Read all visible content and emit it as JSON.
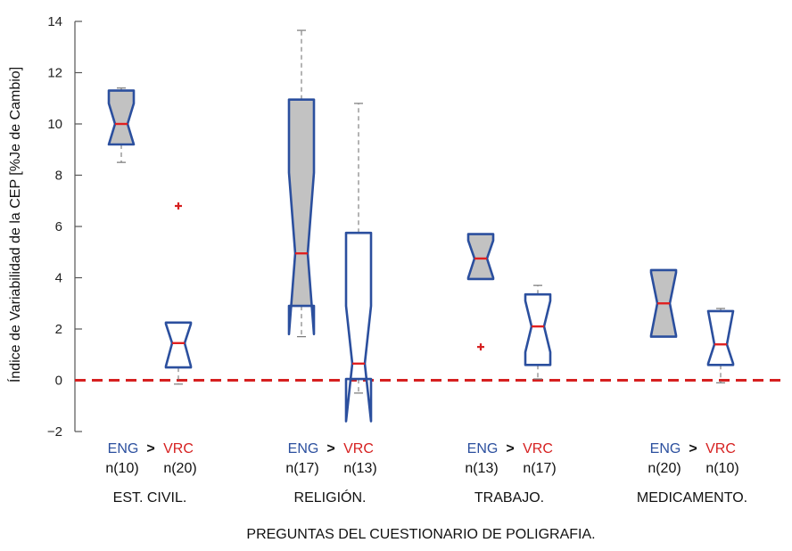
{
  "chart_data": {
    "type": "boxplot",
    "ylabel": "Índice de Variabilidad de la CEP [%Je de Cambio]",
    "xlabel": "PREGUNTAS DEL CUESTIONARIO DE POLIGRAFIA.",
    "ylim": [
      -2,
      14
    ],
    "yticks": [
      {
        "value": 14,
        "label": "14"
      },
      {
        "value": 12,
        "label": "12"
      },
      {
        "value": 10,
        "label": "10"
      },
      {
        "value": 8,
        "label": "8"
      },
      {
        "value": 6,
        "label": "6"
      },
      {
        "value": 4,
        "label": "4"
      },
      {
        "value": 2,
        "label": "2"
      },
      {
        "value": 0,
        "label": "0"
      },
      {
        "value": -2,
        "label": "−2"
      }
    ],
    "reference_line": 0,
    "greater_sign": ">",
    "colors": {
      "box_edge": "#2b4f9e",
      "eng_fill": "#c2c2c2",
      "vrc_fill": "#ffffff",
      "median": "#e02020",
      "outlier": "#d62020",
      "whisker": "#777777",
      "eng_text": "#2b4f9e",
      "vrc_text": "#d62020",
      "ref_line": "#d62020"
    },
    "groups": [
      {
        "name": "EST. CIVIL.",
        "eng_label": "ENG",
        "vrc_label": "VRC",
        "eng_n": "n(10)",
        "vrc_n": "n(20)",
        "eng": {
          "q1": 9.2,
          "median": 10.0,
          "q3": 11.3,
          "notch_low": 9.2,
          "notch_high": 10.8,
          "whisker_low": 8.5,
          "whisker_high": 11.4,
          "outliers": []
        },
        "vrc": {
          "q1": 0.5,
          "median": 1.45,
          "q3": 2.25,
          "notch_low": 0.55,
          "notch_high": 2.2,
          "whisker_low": -0.15,
          "whisker_high": 2.25,
          "outliers": [
            6.8
          ]
        }
      },
      {
        "name": "RELIGIÓN.",
        "eng_label": "ENG",
        "vrc_label": "VRC",
        "eng_n": "n(17)",
        "vrc_n": "n(13)",
        "eng": {
          "q1": 2.9,
          "median": 4.95,
          "q3": 10.95,
          "notch_low": 1.8,
          "notch_high": 8.1,
          "whisker_low": 1.7,
          "whisker_high": 13.65,
          "outliers": []
        },
        "vrc": {
          "q1": 0.05,
          "median": 0.65,
          "q3": 5.75,
          "notch_low": -1.6,
          "notch_high": 2.9,
          "whisker_low": -0.5,
          "whisker_high": 10.8,
          "outliers": []
        }
      },
      {
        "name": "TRABAJO.",
        "eng_label": "ENG",
        "vrc_label": "VRC",
        "eng_n": "n(13)",
        "vrc_n": "n(17)",
        "eng": {
          "q1": 3.95,
          "median": 4.75,
          "q3": 5.7,
          "notch_low": 4.0,
          "notch_high": 5.45,
          "whisker_low": 3.95,
          "whisker_high": 5.7,
          "outliers": [
            1.3
          ]
        },
        "vrc": {
          "q1": 0.6,
          "median": 2.1,
          "q3": 3.35,
          "notch_low": 1.1,
          "notch_high": 3.1,
          "whisker_low": 0.05,
          "whisker_high": 3.7,
          "outliers": []
        }
      },
      {
        "name": "MEDICAMENTO.",
        "eng_label": "ENG",
        "vrc_label": "VRC",
        "eng_n": "n(20)",
        "vrc_n": "n(10)",
        "eng": {
          "q1": 1.7,
          "median": 3.0,
          "q3": 4.3,
          "notch_low": 1.75,
          "notch_high": 4.2,
          "whisker_low": 1.7,
          "whisker_high": 4.3,
          "outliers": []
        },
        "vrc": {
          "q1": 0.6,
          "median": 1.4,
          "q3": 2.7,
          "notch_low": 0.65,
          "notch_high": 2.7,
          "whisker_low": -0.1,
          "whisker_high": 2.8,
          "outliers": []
        }
      }
    ]
  }
}
